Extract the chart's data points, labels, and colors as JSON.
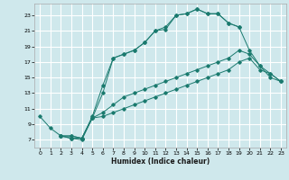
{
  "xlabel": "Humidex (Indice chaleur)",
  "bg_color": "#cfe8ec",
  "grid_color": "#ffffff",
  "line_color": "#1a7a6e",
  "xlim": [
    -0.5,
    23.5
  ],
  "ylim": [
    6.0,
    24.5
  ],
  "xticks": [
    0,
    1,
    2,
    3,
    4,
    5,
    6,
    7,
    8,
    9,
    10,
    11,
    12,
    13,
    14,
    15,
    16,
    17,
    18,
    19,
    20,
    21,
    22,
    23
  ],
  "yticks": [
    7,
    9,
    11,
    13,
    15,
    17,
    19,
    21,
    23
  ],
  "series": [
    [
      [
        0,
        10
      ],
      [
        1,
        8.5
      ],
      [
        2,
        7.5
      ],
      [
        3,
        7.2
      ],
      [
        4,
        7.2
      ],
      [
        5,
        10
      ],
      [
        6,
        14
      ],
      [
        7,
        17.5
      ],
      [
        8,
        18
      ],
      [
        9,
        18.5
      ],
      [
        10,
        19.5
      ],
      [
        11,
        21
      ],
      [
        12,
        21.5
      ],
      [
        13,
        23
      ],
      [
        14,
        23.2
      ],
      [
        15,
        23.8
      ],
      [
        16,
        23.2
      ],
      [
        17,
        23.2
      ],
      [
        18,
        22
      ],
      [
        19,
        21.5
      ]
    ],
    [
      [
        2,
        7.5
      ],
      [
        3,
        7.2
      ],
      [
        4,
        7.0
      ],
      [
        5,
        9.8
      ],
      [
        6,
        13
      ],
      [
        7,
        17.5
      ],
      [
        8,
        18
      ],
      [
        9,
        18.5
      ],
      [
        10,
        19.5
      ],
      [
        11,
        21
      ],
      [
        12,
        21.2
      ],
      [
        13,
        23
      ],
      [
        14,
        23.2
      ],
      [
        15,
        23.8
      ],
      [
        16,
        23.2
      ],
      [
        17,
        23.2
      ],
      [
        18,
        22
      ],
      [
        19,
        21.5
      ],
      [
        20,
        18.5
      ],
      [
        21,
        16.5
      ],
      [
        22,
        15
      ],
      [
        23,
        14.5
      ]
    ],
    [
      [
        2,
        7.5
      ],
      [
        3,
        7.5
      ],
      [
        4,
        7.2
      ],
      [
        5,
        9.8
      ],
      [
        6,
        10.5
      ],
      [
        7,
        11.5
      ],
      [
        8,
        12.5
      ],
      [
        9,
        13
      ],
      [
        10,
        13.5
      ],
      [
        11,
        14
      ],
      [
        12,
        14.5
      ],
      [
        13,
        15
      ],
      [
        14,
        15.5
      ],
      [
        15,
        16
      ],
      [
        16,
        16.5
      ],
      [
        17,
        17
      ],
      [
        18,
        17.5
      ],
      [
        19,
        18.5
      ],
      [
        20,
        18
      ],
      [
        21,
        16.5
      ],
      [
        22,
        15.5
      ],
      [
        23,
        14.5
      ]
    ],
    [
      [
        2,
        7.5
      ],
      [
        3,
        7.5
      ],
      [
        4,
        7.2
      ],
      [
        5,
        9.8
      ],
      [
        6,
        10
      ],
      [
        7,
        10.5
      ],
      [
        8,
        11
      ],
      [
        9,
        11.5
      ],
      [
        10,
        12
      ],
      [
        11,
        12.5
      ],
      [
        12,
        13
      ],
      [
        13,
        13.5
      ],
      [
        14,
        14
      ],
      [
        15,
        14.5
      ],
      [
        16,
        15
      ],
      [
        17,
        15.5
      ],
      [
        18,
        16
      ],
      [
        19,
        17
      ],
      [
        20,
        17.5
      ],
      [
        21,
        16
      ],
      [
        22,
        15.5
      ],
      [
        23,
        14.5
      ]
    ]
  ]
}
